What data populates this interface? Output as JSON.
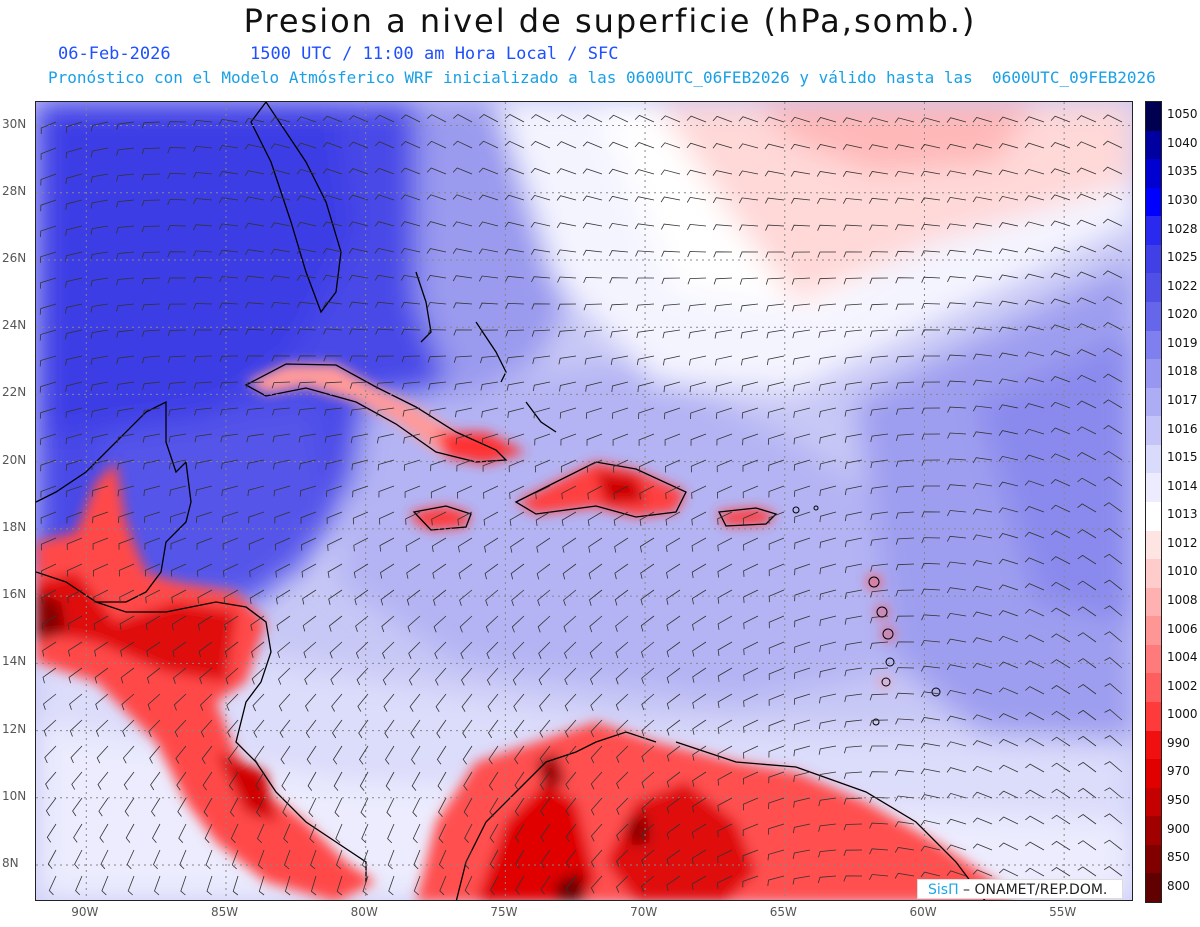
{
  "header": {
    "title": "Presion a nivel de superficie (hPa,somb.)",
    "date": "06-Feb-2026",
    "time": "1500 UTC / 11:00 am Hora Local / SFC",
    "description": "Pronóstico con el Modelo Atmósferico WRF inicializado a las 0600UTC_06FEB2026 y válido hasta las  0600UTC_09FEB2026"
  },
  "map": {
    "lat_labels": [
      "30N",
      "28N",
      "26N",
      "24N",
      "22N",
      "20N",
      "18N",
      "16N",
      "14N",
      "12N",
      "10N",
      "8N"
    ],
    "lon_labels": [
      "90W",
      "85W",
      "80W",
      "75W",
      "70W",
      "65W",
      "60W",
      "55W"
    ],
    "lat_range": [
      6.9,
      30.7
    ],
    "lon_range": [
      -91.8,
      -52.5
    ]
  },
  "legend": {
    "levels": [
      "1050",
      "1040",
      "1035",
      "1030",
      "1028",
      "1025",
      "1022",
      "1020",
      "1019",
      "1018",
      "1017",
      "1016",
      "1015",
      "1014",
      "1013",
      "1012",
      "1010",
      "1008",
      "1006",
      "1004",
      "1002",
      "1000",
      "990",
      "970",
      "950",
      "900",
      "850",
      "800"
    ],
    "colors": [
      "#000050",
      "#0000a0",
      "#0000d0",
      "#0000ff",
      "#2929f0",
      "#4040e6",
      "#5050e6",
      "#6666ea",
      "#7f7ff0",
      "#9797f2",
      "#adadf6",
      "#c4c4f8",
      "#dadafc",
      "#ececfe",
      "#ffffff",
      "#ffe4e4",
      "#ffcccc",
      "#ffb0b0",
      "#ff9696",
      "#ff7a7a",
      "#ff5e5e",
      "#ff3a3a",
      "#f01010",
      "#e00000",
      "#c40000",
      "#a00000",
      "#800000",
      "#600000"
    ]
  },
  "credit": {
    "brand": "SisΠ",
    "org": " – ONAMET/REP.DOM."
  }
}
